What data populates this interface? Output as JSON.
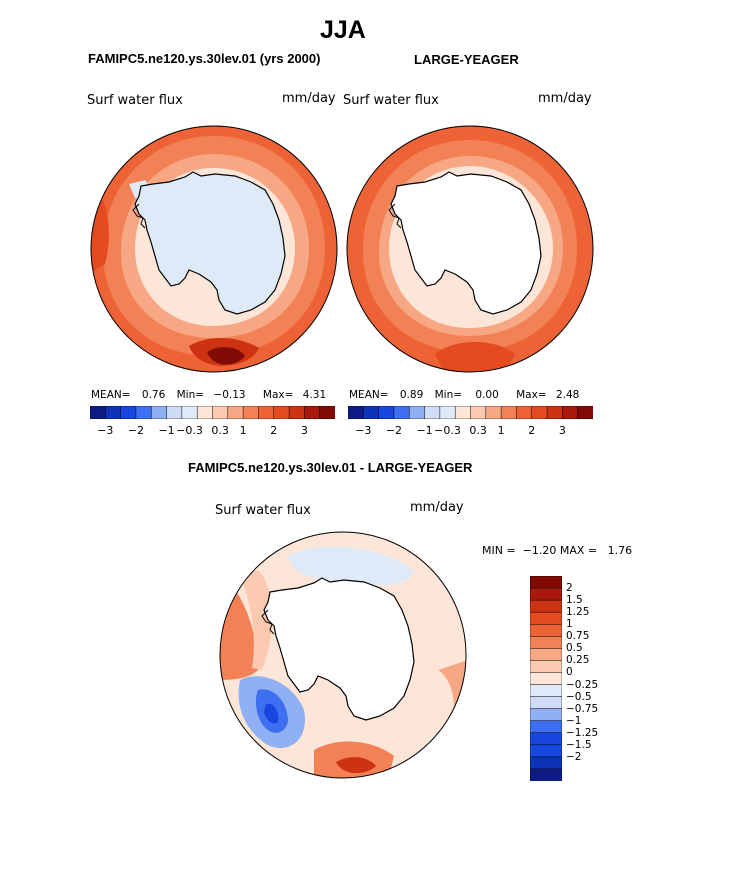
{
  "page_title": "JJA",
  "colors": {
    "d3": "#0f1b85",
    "d2": "#0d33b8",
    "d1": "#1747e0",
    "d05": "#3d6ff0",
    "d03": "#8fb0f2",
    "d0": "#cfdcf8",
    "dz": "#dfeaf9",
    "p0": "#fde6d8",
    "p03": "#fccab0",
    "p05": "#f7a784",
    "p1": "#f28155",
    "p15": "#ee6336",
    "p2": "#e54a20",
    "p25": "#cd3213",
    "p3": "#a8190b",
    "p4": "#7f0b04"
  },
  "panel_left": {
    "case_title": "FAMIPC5.ne120.ys.30lev.01 (yrs 2000)",
    "variable": "Surf water flux",
    "units": "mm/day",
    "stats": {
      "mean_label": "MEAN=",
      "mean": "0.76",
      "min_label": "Min=",
      "min": "−0.13",
      "max_label": "Max=",
      "max": "4.31"
    }
  },
  "panel_right": {
    "case_title": "LARGE-YEAGER",
    "variable": "Surf water flux",
    "units": "mm/day",
    "stats": {
      "mean_label": "MEAN=",
      "mean": "0.89",
      "min_label": "Min=",
      "min": "0.00",
      "max_label": "Max=",
      "max": "2.48"
    }
  },
  "top_colorbar_labels": [
    "−3",
    "−2",
    "−1",
    "−0.3",
    "0.3",
    "1",
    "2",
    "3"
  ],
  "panel_diff": {
    "case_title": "FAMIPC5.ne120.ys.30lev.01 - LARGE-YEAGER",
    "variable": "Surf water flux",
    "units": "mm/day",
    "stats_text": "MIN =  −1.20 MAX =   1.76"
  },
  "diff_colorbar_labels": [
    "2",
    "1.5",
    "1.25",
    "1",
    "0.75",
    "0.5",
    "0.25",
    "0",
    "−0.25",
    "−0.5",
    "−0.75",
    "−1",
    "−1.25",
    "−1.5",
    "−2"
  ]
}
